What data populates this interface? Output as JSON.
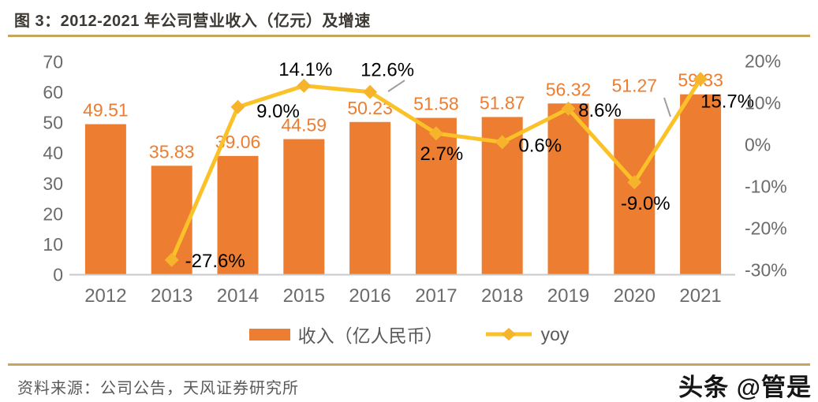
{
  "figure": {
    "title": "图 3：2012-2021 年公司营业收入（亿元）及增速"
  },
  "chart_data": {
    "type": "combo",
    "categories": [
      "2012",
      "2013",
      "2014",
      "2015",
      "2016",
      "2017",
      "2018",
      "2019",
      "2020",
      "2021"
    ],
    "series": [
      {
        "name": "收入（亿人民币）",
        "type": "bar",
        "axis": "left",
        "color": "#ED7D31",
        "values": [
          49.51,
          35.83,
          39.06,
          44.59,
          50.23,
          51.58,
          51.87,
          56.32,
          51.27,
          59.33
        ],
        "labels": [
          "49.51",
          "35.83",
          "39.06",
          "44.59",
          "50.23",
          "51.58",
          "51.87",
          "56.32",
          "51.27",
          "59.33"
        ]
      },
      {
        "name": "yoy",
        "type": "line",
        "axis": "right",
        "color": "#FFC000",
        "values_pct": [
          null,
          -27.6,
          9.0,
          14.1,
          12.6,
          2.7,
          0.6,
          8.6,
          -9.0,
          15.7
        ],
        "labels": [
          null,
          "-27.6%",
          "9.0%",
          "14.1%",
          "12.6%",
          "2.7%",
          "0.6%",
          "8.6%",
          "-9.0%",
          "15.7%"
        ]
      }
    ],
    "left_axis": {
      "min": 0,
      "max": 70,
      "step": 10,
      "ticks": [
        "0",
        "10",
        "20",
        "30",
        "40",
        "50",
        "60",
        "70"
      ]
    },
    "right_axis": {
      "min": -30,
      "max": 20,
      "step": 10,
      "ticks": [
        "-30%",
        "-20%",
        "-10%",
        "0%",
        "10%",
        "20%"
      ]
    },
    "legend": {
      "position": "bottom",
      "items": [
        "收入（亿人民币）",
        "yoy"
      ]
    },
    "grid": false,
    "title": "图 3：2012-2021 年公司营业收入（亿元）及增速",
    "xlabel": "",
    "ylabel_left": "",
    "ylabel_right": ""
  },
  "footer": {
    "source": "资料来源：公司公告，天风证券研究所",
    "watermark": "头条 @管是"
  },
  "colors": {
    "bar": "#ED7D31",
    "bar_label": "#ED7D31",
    "line": "#FBC128",
    "marker": "#F6B42C",
    "accent_rule": "#C8A55E",
    "axis_text": "#6b6b6b",
    "yoy_label": "#000000",
    "axis_line": "#c9c9c9",
    "leader_line": "#9e9e9e",
    "source_text": "#595959"
  }
}
